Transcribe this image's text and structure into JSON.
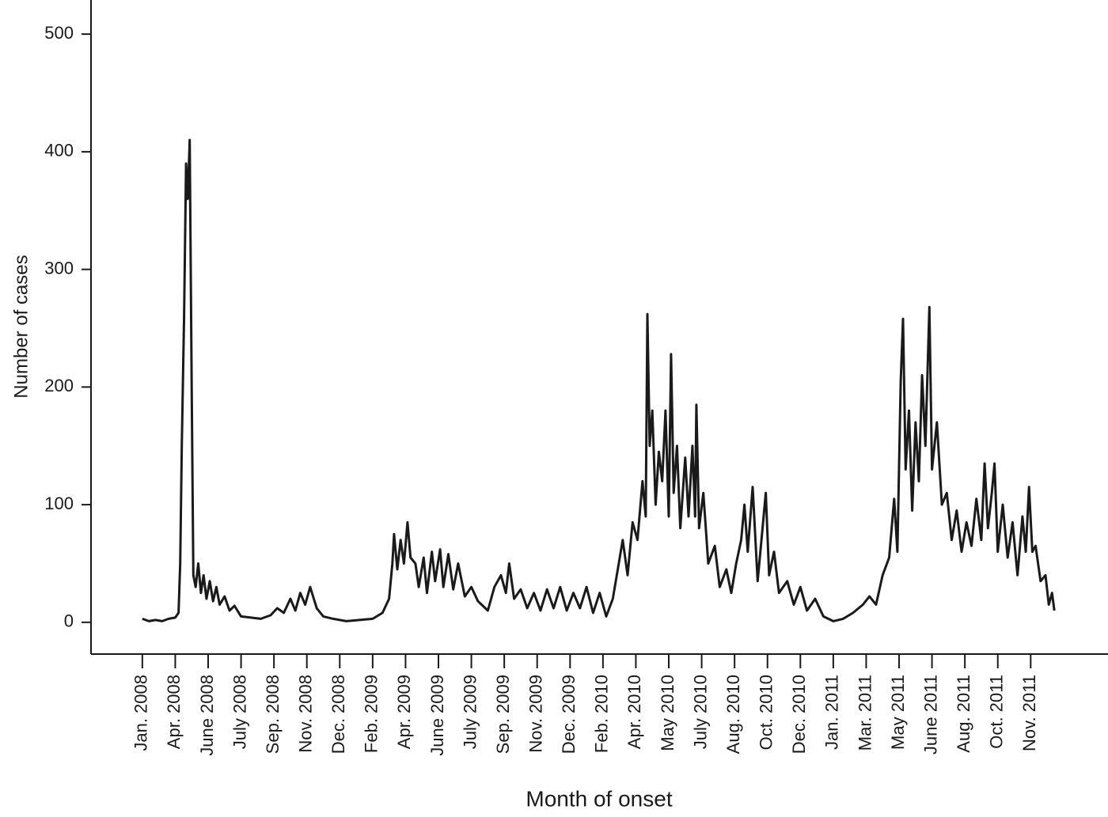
{
  "chart_data": {
    "type": "line",
    "y_label": "Number of cases",
    "x_label": "Month of onset",
    "xlim": [
      -1.56,
      29.35
    ],
    "ylim": [
      -27,
      529
    ],
    "yticks": [
      0,
      100,
      200,
      300,
      400,
      500
    ],
    "xticks": [
      {
        "value": 0,
        "label": "Jan. 2008"
      },
      {
        "value": 1,
        "label": "Apr. 2008"
      },
      {
        "value": 2,
        "label": "June 2008"
      },
      {
        "value": 3,
        "label": "July 2008"
      },
      {
        "value": 4,
        "label": "Sep. 2008"
      },
      {
        "value": 5,
        "label": "Nov. 2008"
      },
      {
        "value": 6,
        "label": "Dec. 2008"
      },
      {
        "value": 7,
        "label": "Feb. 2009"
      },
      {
        "value": 8,
        "label": "Apr. 2009"
      },
      {
        "value": 9,
        "label": "June 2009"
      },
      {
        "value": 10,
        "label": "July 2009"
      },
      {
        "value": 11,
        "label": "Sep. 2009"
      },
      {
        "value": 12,
        "label": "Nov. 2009"
      },
      {
        "value": 13,
        "label": "Dec. 2009"
      },
      {
        "value": 14,
        "label": "Feb. 2010"
      },
      {
        "value": 15,
        "label": "Apr. 2010"
      },
      {
        "value": 16,
        "label": "May 2010"
      },
      {
        "value": 17,
        "label": "July 2010"
      },
      {
        "value": 18,
        "label": "Aug. 2010"
      },
      {
        "value": 19,
        "label": "Oct. 2010"
      },
      {
        "value": 20,
        "label": "Dec. 2010"
      },
      {
        "value": 21,
        "label": "Jan. 2011"
      },
      {
        "value": 22,
        "label": "Mar. 2011"
      },
      {
        "value": 23,
        "label": "May 2011"
      },
      {
        "value": 24,
        "label": "June 2011"
      },
      {
        "value": 25,
        "label": "Aug. 2011"
      },
      {
        "value": 26,
        "label": "Oct. 2011"
      },
      {
        "value": 27,
        "label": "Nov. 2011"
      }
    ],
    "series": [
      {
        "name": "Cases",
        "color": "#1a1a1a",
        "x": [
          0,
          0.2,
          0.4,
          0.6,
          0.8,
          1.0,
          1.1,
          1.15,
          1.2,
          1.27,
          1.33,
          1.38,
          1.44,
          1.5,
          1.55,
          1.62,
          1.7,
          1.78,
          1.86,
          1.95,
          2.05,
          2.15,
          2.25,
          2.35,
          2.5,
          2.65,
          2.8,
          3.0,
          3.3,
          3.6,
          3.9,
          4.1,
          4.3,
          4.5,
          4.65,
          4.8,
          4.95,
          5.1,
          5.3,
          5.5,
          5.8,
          6.2,
          6.6,
          7.0,
          7.3,
          7.5,
          7.6,
          7.65,
          7.75,
          7.85,
          7.95,
          8.06,
          8.15,
          8.3,
          8.4,
          8.55,
          8.65,
          8.8,
          8.9,
          9.05,
          9.15,
          9.3,
          9.45,
          9.6,
          9.8,
          10.0,
          10.2,
          10.5,
          10.7,
          10.9,
          11.05,
          11.15,
          11.3,
          11.5,
          11.7,
          11.9,
          12.1,
          12.3,
          12.5,
          12.7,
          12.9,
          13.1,
          13.3,
          13.5,
          13.7,
          13.9,
          14.1,
          14.3,
          14.45,
          14.6,
          14.75,
          14.9,
          15.05,
          15.2,
          15.3,
          15.35,
          15.42,
          15.5,
          15.6,
          15.7,
          15.8,
          15.9,
          16.0,
          16.07,
          16.15,
          16.25,
          16.35,
          16.5,
          16.6,
          16.72,
          16.8,
          16.84,
          16.92,
          17.05,
          17.2,
          17.4,
          17.55,
          17.75,
          17.9,
          18.05,
          18.2,
          18.3,
          18.4,
          18.55,
          18.7,
          18.85,
          18.95,
          19.05,
          19.2,
          19.35,
          19.6,
          19.8,
          20.0,
          20.2,
          20.45,
          20.7,
          21.0,
          21.3,
          21.6,
          21.9,
          22.1,
          22.3,
          22.5,
          22.7,
          22.85,
          22.95,
          23.05,
          23.12,
          23.2,
          23.3,
          23.4,
          23.5,
          23.6,
          23.7,
          23.8,
          23.92,
          24.0,
          24.15,
          24.3,
          24.45,
          24.6,
          24.75,
          24.9,
          25.05,
          25.2,
          25.35,
          25.5,
          25.6,
          25.7,
          25.82,
          25.9,
          26.0,
          26.15,
          26.3,
          26.45,
          26.6,
          26.75,
          26.85,
          26.95,
          27.05,
          27.15,
          27.3,
          27.45,
          27.55,
          27.65,
          27.72
        ],
        "values": [
          3,
          1,
          2,
          1,
          3,
          4,
          8,
          50,
          150,
          260,
          390,
          360,
          410,
          200,
          40,
          30,
          50,
          25,
          40,
          20,
          35,
          18,
          30,
          15,
          22,
          10,
          14,
          5,
          4,
          3,
          6,
          12,
          8,
          20,
          10,
          25,
          15,
          30,
          12,
          5,
          3,
          1,
          2,
          3,
          8,
          20,
          50,
          75,
          45,
          70,
          50,
          85,
          55,
          50,
          30,
          55,
          25,
          60,
          35,
          62,
          30,
          58,
          28,
          50,
          22,
          30,
          18,
          10,
          30,
          40,
          25,
          50,
          20,
          28,
          12,
          25,
          10,
          28,
          12,
          30,
          10,
          25,
          12,
          30,
          8,
          25,
          5,
          20,
          45,
          70,
          40,
          85,
          70,
          120,
          90,
          262,
          150,
          180,
          100,
          145,
          120,
          180,
          90,
          228,
          110,
          150,
          80,
          140,
          90,
          150,
          90,
          185,
          80,
          110,
          50,
          65,
          30,
          45,
          25,
          50,
          70,
          100,
          60,
          115,
          35,
          80,
          110,
          40,
          60,
          25,
          35,
          15,
          30,
          10,
          20,
          5,
          1,
          3,
          8,
          15,
          22,
          15,
          40,
          55,
          105,
          60,
          205,
          258,
          130,
          180,
          95,
          170,
          120,
          210,
          150,
          268,
          130,
          170,
          100,
          110,
          70,
          95,
          60,
          85,
          65,
          105,
          70,
          135,
          80,
          110,
          135,
          60,
          100,
          55,
          85,
          40,
          90,
          60,
          115,
          60,
          65,
          35,
          40,
          15,
          25,
          10
        ]
      }
    ]
  }
}
